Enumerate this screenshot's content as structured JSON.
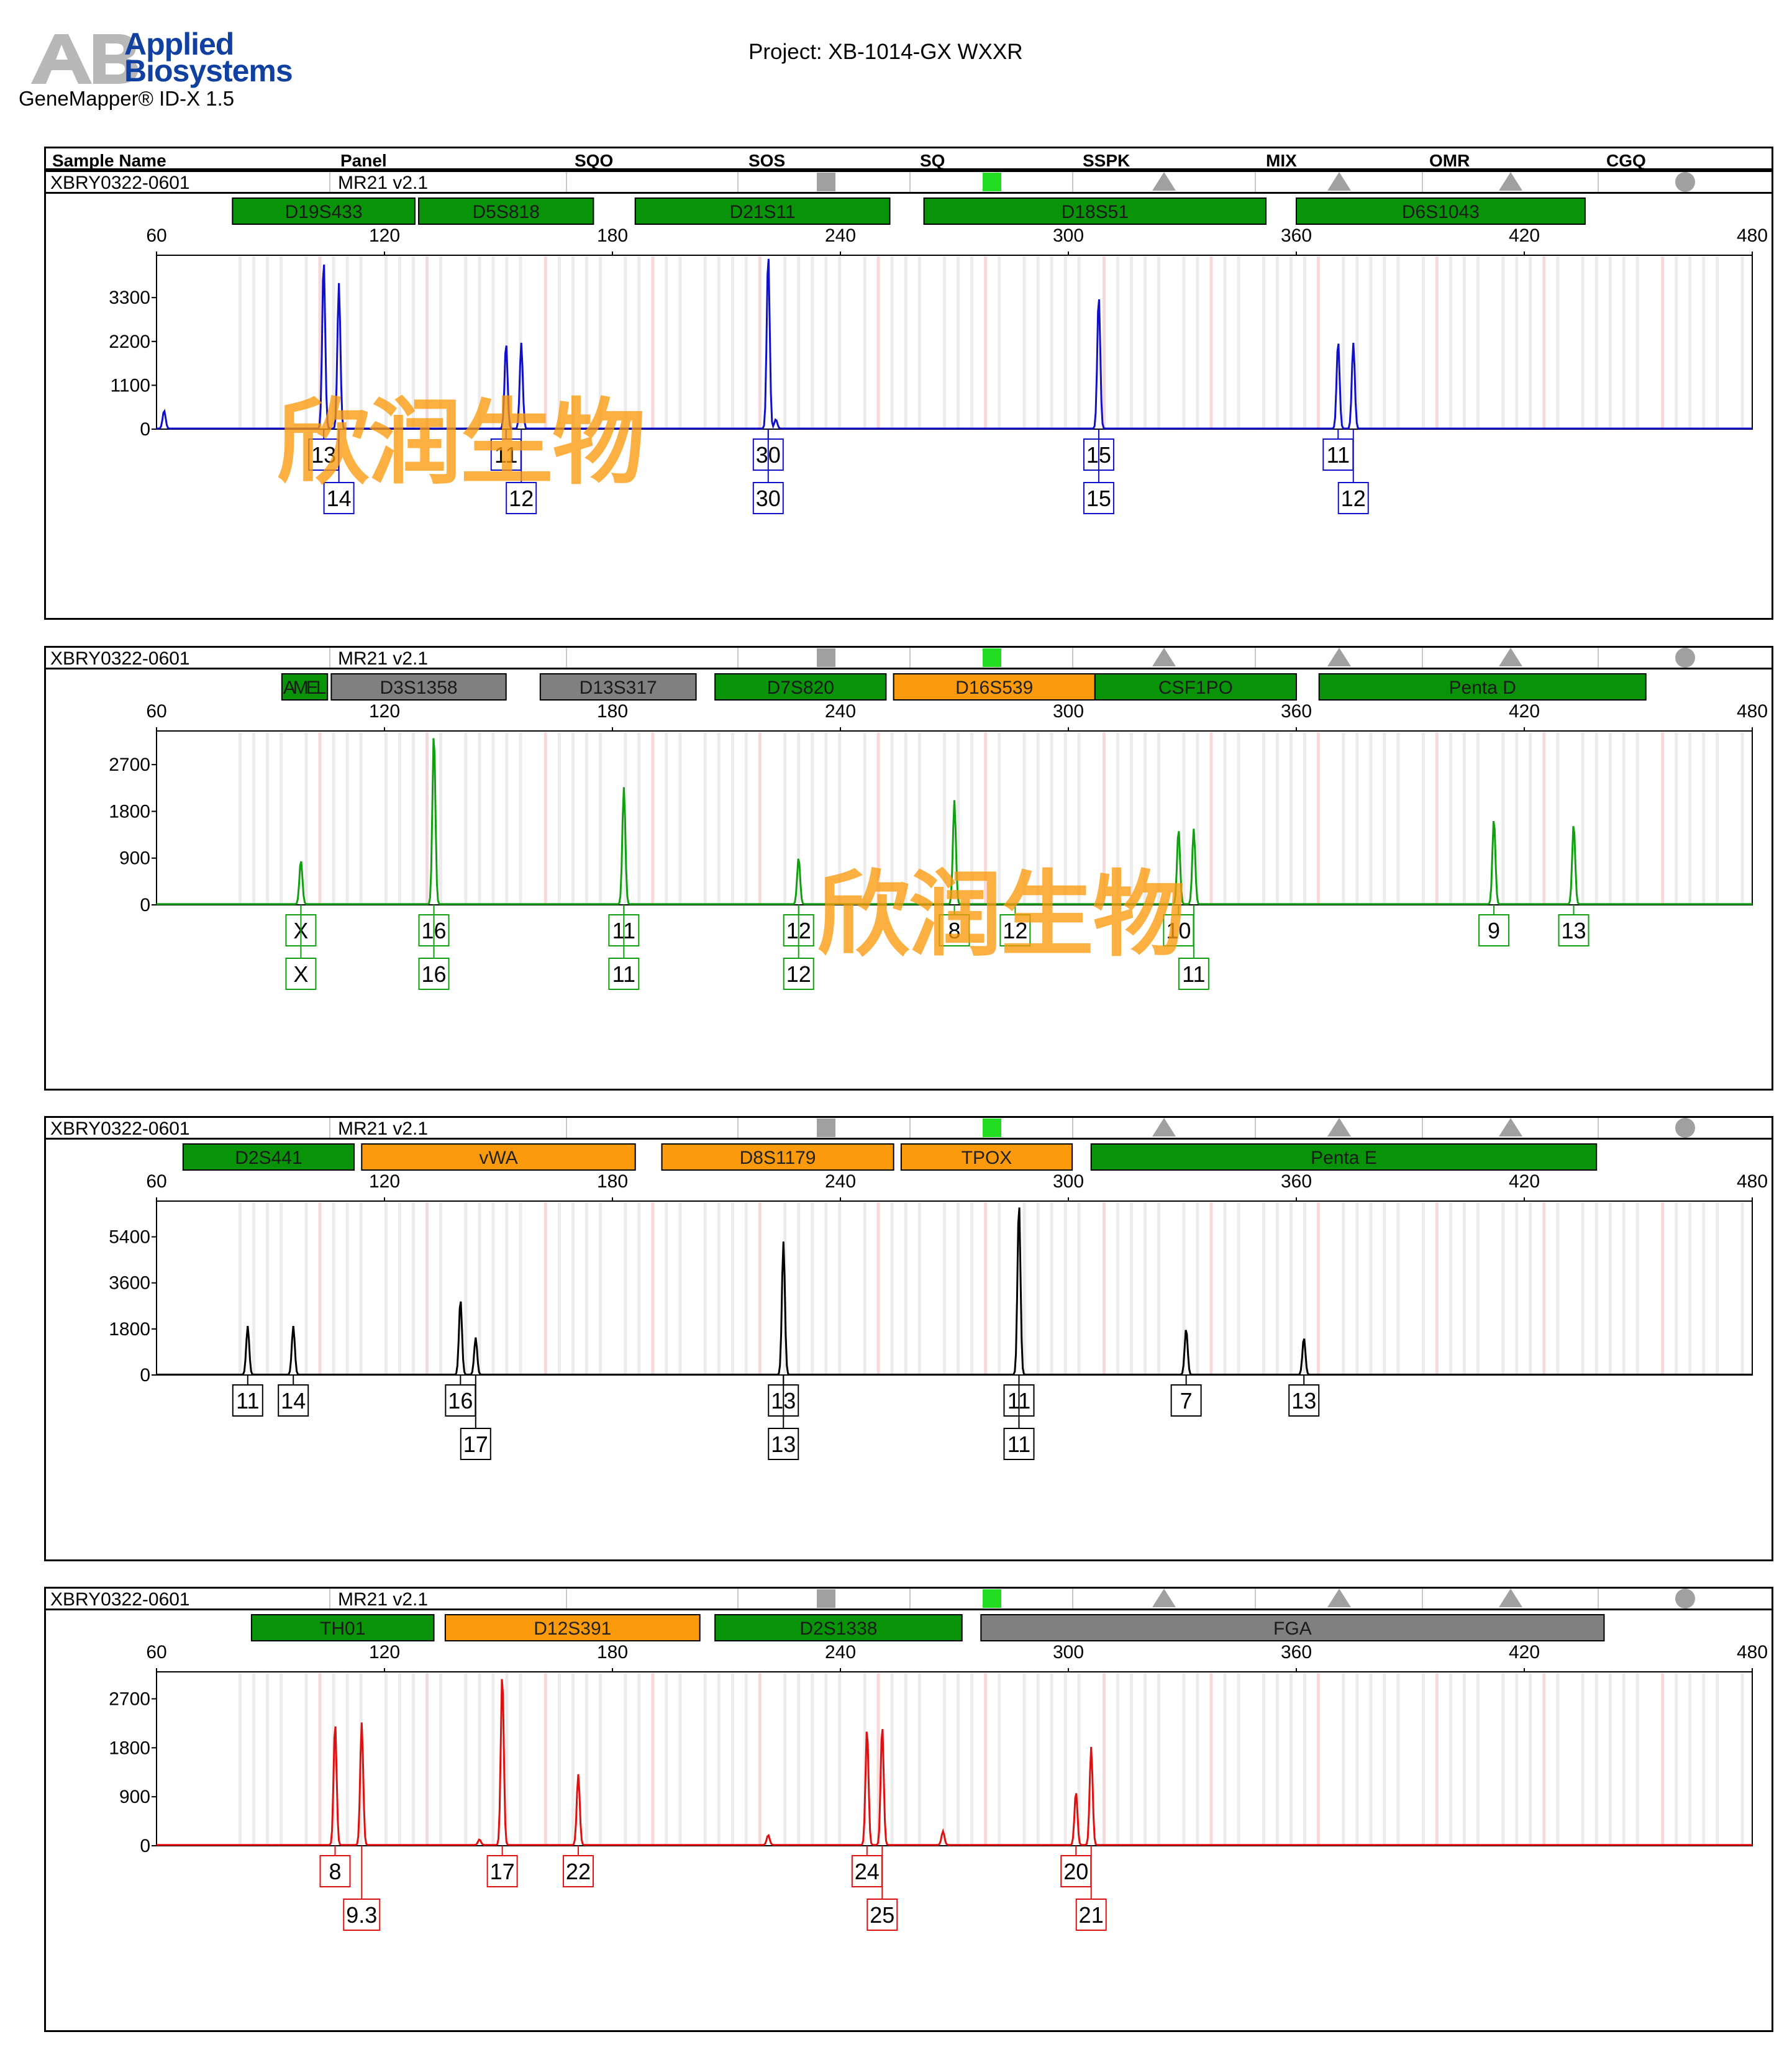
{
  "header": {
    "logo_line1": "Applied",
    "logo_line2": "Biosystems",
    "software": "GeneMapper® ID-X  1.5",
    "project": "Project: XB-1014-GX WXXR"
  },
  "table": {
    "columns": [
      "Sample Name",
      "Panel",
      "SQO",
      "SOS",
      "SQ",
      "SSPK",
      "MIX",
      "OMR",
      "CGQ"
    ],
    "sample_name": "XBRY0322-0601",
    "panel": "MR21  v2.1",
    "flags": {
      "SOS": {
        "shape": "square",
        "color": "#a0a0a0"
      },
      "SQ": {
        "shape": "square",
        "color": "#22dd22"
      },
      "SSPK": {
        "shape": "triangle",
        "color": "#a0a0a0"
      },
      "MIX": {
        "shape": "triangle",
        "color": "#a0a0a0"
      },
      "OMR": {
        "shape": "triangle",
        "color": "#a0a0a0"
      },
      "CGQ": {
        "shape": "circle",
        "color": "#a0a0a0"
      }
    }
  },
  "watermark": "欣润生物",
  "colors": {
    "marker_green": "#099309",
    "marker_orange": "#fa9a0c",
    "marker_gray": "#808080"
  },
  "chart_data": [
    {
      "type": "line",
      "dye_color": "#1010c8",
      "x_ticks": [
        60,
        120,
        180,
        240,
        300,
        360,
        420,
        480
      ],
      "xlim": [
        60,
        480
      ],
      "y_ticks": [
        0,
        1100,
        2200,
        3300
      ],
      "ylim": [
        0,
        4300
      ],
      "markers": [
        {
          "name": "D19S433",
          "start": 80,
          "end": 128,
          "status": "green"
        },
        {
          "name": "D5S818",
          "start": 129,
          "end": 175,
          "status": "green"
        },
        {
          "name": "D21S11",
          "start": 186,
          "end": 253,
          "status": "green"
        },
        {
          "name": "D18S51",
          "start": 262,
          "end": 352,
          "status": "green"
        },
        {
          "name": "D6S1043",
          "start": 360,
          "end": 436,
          "status": "green"
        }
      ],
      "peaks": [
        [
          104,
          4250
        ],
        [
          108,
          3650
        ],
        [
          152,
          2150
        ],
        [
          156,
          2150
        ],
        [
          221,
          4400
        ],
        [
          308,
          3350
        ],
        [
          371,
          2200
        ],
        [
          375,
          2150
        ],
        [
          62,
          450
        ],
        [
          223,
          230
        ]
      ],
      "alleles": [
        {
          "x": 104,
          "label": "13",
          "row": 1
        },
        {
          "x": 108,
          "label": "14",
          "row": 2
        },
        {
          "x": 152,
          "label": "11",
          "row": 1
        },
        {
          "x": 156,
          "label": "12",
          "row": 2
        },
        {
          "x": 221,
          "label": "30",
          "row": 1
        },
        {
          "x": 221,
          "label": "30",
          "row": 2
        },
        {
          "x": 308,
          "label": "15",
          "row": 1
        },
        {
          "x": 308,
          "label": "15",
          "row": 2
        },
        {
          "x": 371,
          "label": "11",
          "row": 1
        },
        {
          "x": 375,
          "label": "12",
          "row": 2
        }
      ]
    },
    {
      "type": "line",
      "dye_color": "#10a010",
      "x_ticks": [
        60,
        120,
        180,
        240,
        300,
        360,
        420,
        480
      ],
      "xlim": [
        60,
        480
      ],
      "y_ticks": [
        0,
        900,
        1800,
        2700
      ],
      "ylim": [
        0,
        3300
      ],
      "markers": [
        {
          "name": "AMEL",
          "start": 93,
          "end": 105,
          "status": "green"
        },
        {
          "name": "D3S1358",
          "start": 106,
          "end": 152,
          "status": "gray"
        },
        {
          "name": "D13S317",
          "start": 161,
          "end": 202,
          "status": "gray"
        },
        {
          "name": "D7S820",
          "start": 207,
          "end": 252,
          "status": "green"
        },
        {
          "name": "D16S539",
          "start": 254,
          "end": 307,
          "status": "orange"
        },
        {
          "name": "CSF1PO",
          "start": 307,
          "end": 360,
          "status": "green"
        },
        {
          "name": "Penta D",
          "start": 366,
          "end": 452,
          "status": "green"
        }
      ],
      "peaks": [
        [
          98,
          850
        ],
        [
          133,
          3300
        ],
        [
          183,
          2250
        ],
        [
          229,
          900
        ],
        [
          270,
          2000
        ],
        [
          329,
          1450
        ],
        [
          333,
          1450
        ],
        [
          412,
          1650
        ],
        [
          433,
          1550
        ]
      ],
      "alleles": [
        {
          "x": 98,
          "label": "X",
          "row": 1
        },
        {
          "x": 98,
          "label": "X",
          "row": 2
        },
        {
          "x": 133,
          "label": "16",
          "row": 1
        },
        {
          "x": 133,
          "label": "16",
          "row": 2
        },
        {
          "x": 183,
          "label": "11",
          "row": 1
        },
        {
          "x": 183,
          "label": "11",
          "row": 2
        },
        {
          "x": 229,
          "label": "12",
          "row": 1
        },
        {
          "x": 229,
          "label": "12",
          "row": 2
        },
        {
          "x": 270,
          "label": "8",
          "row": 1
        },
        {
          "x": 286,
          "label": "12",
          "row": 1
        },
        {
          "x": 329,
          "label": "10",
          "row": 1
        },
        {
          "x": 333,
          "label": "11",
          "row": 2
        },
        {
          "x": 412,
          "label": "9",
          "row": 1
        },
        {
          "x": 433,
          "label": "13",
          "row": 1
        }
      ]
    },
    {
      "type": "line",
      "dye_color": "#000000",
      "x_ticks": [
        60,
        120,
        180,
        240,
        300,
        360,
        420,
        480
      ],
      "xlim": [
        60,
        480
      ],
      "y_ticks": [
        0,
        1800,
        3600,
        5400
      ],
      "ylim": [
        0,
        6700
      ],
      "markers": [
        {
          "name": "D2S441",
          "start": 67,
          "end": 112,
          "status": "green"
        },
        {
          "name": "vWA",
          "start": 114,
          "end": 186,
          "status": "orange"
        },
        {
          "name": "D8S1179",
          "start": 193,
          "end": 254,
          "status": "orange"
        },
        {
          "name": "TPOX",
          "start": 256,
          "end": 301,
          "status": "orange"
        },
        {
          "name": "Penta E",
          "start": 306,
          "end": 439,
          "status": "green"
        }
      ],
      "peaks": [
        [
          84,
          1900
        ],
        [
          96,
          1900
        ],
        [
          140,
          2950
        ],
        [
          144,
          1450
        ],
        [
          225,
          5200
        ],
        [
          287,
          6750
        ],
        [
          331,
          1800
        ],
        [
          362,
          1450
        ]
      ],
      "alleles": [
        {
          "x": 84,
          "label": "11",
          "row": 1
        },
        {
          "x": 96,
          "label": "14",
          "row": 1
        },
        {
          "x": 140,
          "label": "16",
          "row": 1
        },
        {
          "x": 144,
          "label": "17",
          "row": 2
        },
        {
          "x": 225,
          "label": "13",
          "row": 1
        },
        {
          "x": 225,
          "label": "13",
          "row": 2
        },
        {
          "x": 287,
          "label": "11",
          "row": 1
        },
        {
          "x": 287,
          "label": "11",
          "row": 2
        },
        {
          "x": 331,
          "label": "7",
          "row": 1
        },
        {
          "x": 362,
          "label": "13",
          "row": 1
        }
      ]
    },
    {
      "type": "line",
      "dye_color": "#e01010",
      "x_ticks": [
        60,
        120,
        180,
        240,
        300,
        360,
        420,
        480
      ],
      "xlim": [
        60,
        480
      ],
      "y_ticks": [
        0,
        900,
        1800,
        2700
      ],
      "ylim": [
        0,
        3150
      ],
      "markers": [
        {
          "name": "TH01",
          "start": 85,
          "end": 133,
          "status": "green"
        },
        {
          "name": "D12S391",
          "start": 136,
          "end": 203,
          "status": "orange"
        },
        {
          "name": "D2S1338",
          "start": 207,
          "end": 272,
          "status": "green"
        },
        {
          "name": "FGA",
          "start": 277,
          "end": 441,
          "status": "gray"
        }
      ],
      "peaks": [
        [
          107,
          2250
        ],
        [
          114,
          2250
        ],
        [
          151,
          3150
        ],
        [
          171,
          1300
        ],
        [
          247,
          2150
        ],
        [
          251,
          2200
        ],
        [
          267,
          250
        ],
        [
          221,
          180
        ],
        [
          302,
          980
        ],
        [
          306,
          1800
        ],
        [
          145,
          100
        ]
      ],
      "alleles": [
        {
          "x": 107,
          "label": "8",
          "row": 1
        },
        {
          "x": 114,
          "label": "9.3",
          "row": 2
        },
        {
          "x": 151,
          "label": "17",
          "row": 1
        },
        {
          "x": 171,
          "label": "22",
          "row": 1
        },
        {
          "x": 247,
          "label": "24",
          "row": 1
        },
        {
          "x": 251,
          "label": "25",
          "row": 2
        },
        {
          "x": 302,
          "label": "20",
          "row": 1
        },
        {
          "x": 306,
          "label": "21",
          "row": 2
        }
      ]
    }
  ]
}
